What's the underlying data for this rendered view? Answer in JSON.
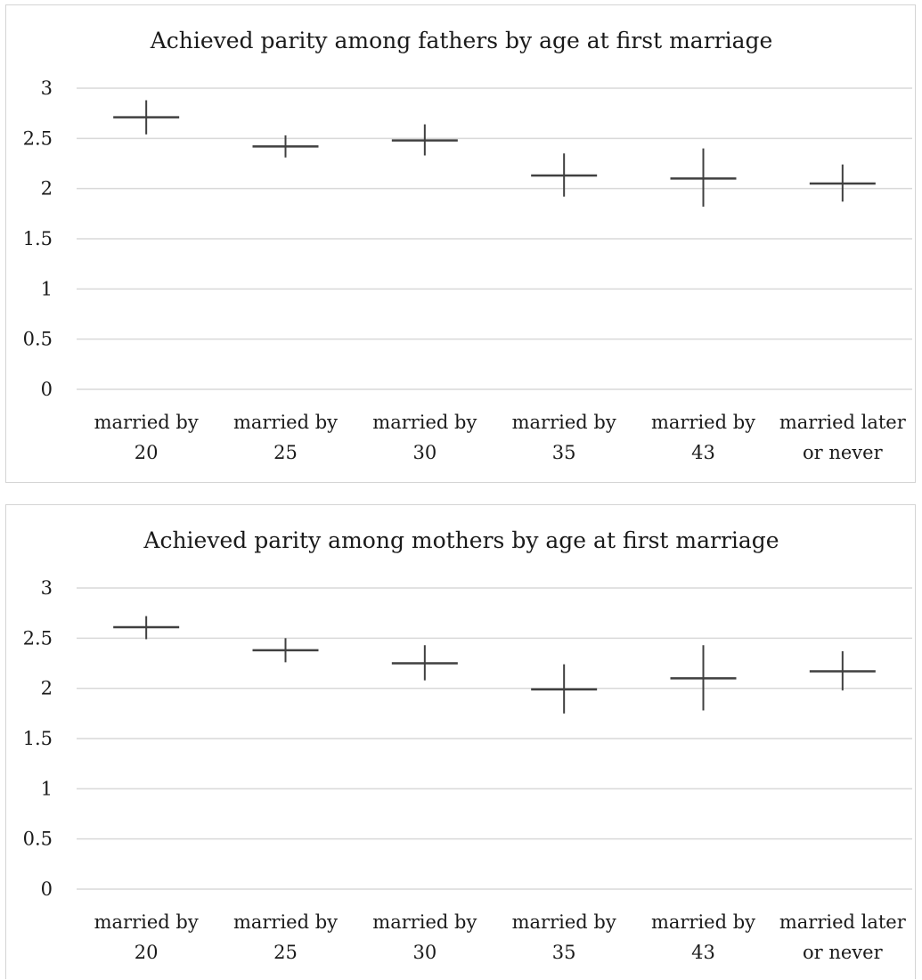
{
  "chart_data": [
    {
      "type": "scatter",
      "title": "Achieved parity among fathers by age at first marriage",
      "categories": [
        [
          "married by",
          "20"
        ],
        [
          "married by",
          "25"
        ],
        [
          "married by",
          "30"
        ],
        [
          "married by",
          "35"
        ],
        [
          "married by",
          "43"
        ],
        [
          "married later",
          "or never"
        ]
      ],
      "series": [
        {
          "low": [
            2.54,
            2.31,
            2.33,
            1.92,
            1.82,
            1.87
          ],
          "high": [
            2.88,
            2.53,
            2.64,
            2.35,
            2.4,
            2.24
          ],
          "mean": [
            2.71,
            2.42,
            2.48,
            2.13,
            2.1,
            2.05
          ]
        }
      ],
      "ylim": [
        0,
        3
      ],
      "yticks": [
        "0",
        "0.5",
        "1",
        "1.5",
        "2",
        "2.5",
        "3"
      ],
      "grid": true
    },
    {
      "type": "scatter",
      "title": "Achieved parity among mothers by age at first marriage",
      "categories": [
        [
          "married by",
          "20"
        ],
        [
          "married by",
          "25"
        ],
        [
          "married by",
          "30"
        ],
        [
          "married by",
          "35"
        ],
        [
          "married by",
          "43"
        ],
        [
          "married later",
          "or never"
        ]
      ],
      "series": [
        {
          "low": [
            2.49,
            2.26,
            2.08,
            1.75,
            1.78,
            1.98
          ],
          "high": [
            2.72,
            2.5,
            2.43,
            2.24,
            2.43,
            2.37
          ],
          "mean": [
            2.61,
            2.38,
            2.25,
            1.99,
            2.1,
            2.17
          ]
        }
      ],
      "ylim": [
        0,
        3
      ],
      "yticks": [
        "0",
        "0.5",
        "1",
        "1.5",
        "2",
        "2.5",
        "3"
      ],
      "grid": true
    }
  ]
}
